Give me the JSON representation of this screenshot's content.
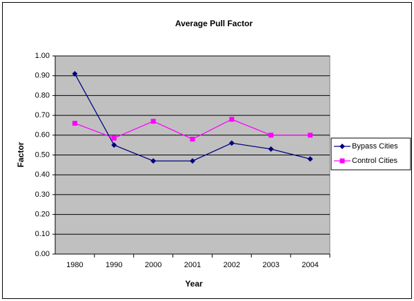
{
  "chart_data": {
    "type": "line",
    "title": "Average Pull Factor",
    "x_label": "Year",
    "y_label": "Factor",
    "categories": [
      "1980",
      "1990",
      "2000",
      "2001",
      "2002",
      "2003",
      "2004"
    ],
    "series": [
      {
        "name": "Bypass Cities",
        "color": "#000080",
        "marker": "diamond",
        "values": [
          0.91,
          0.55,
          0.47,
          0.47,
          0.56,
          0.53,
          0.48
        ]
      },
      {
        "name": "Control Cities",
        "color": "#ff00ff",
        "marker": "square",
        "values": [
          0.66,
          0.585,
          0.67,
          0.58,
          0.68,
          0.6,
          0.6
        ]
      }
    ],
    "ylim": [
      0,
      1
    ],
    "yticks": [
      {
        "value": 0,
        "label": "0.00"
      },
      {
        "value": 0.1,
        "label": "0.10"
      },
      {
        "value": 0.2,
        "label": "0.20"
      },
      {
        "value": 0.3,
        "label": "0.30"
      },
      {
        "value": 0.4,
        "label": "0.40"
      },
      {
        "value": 0.5,
        "label": "0.50"
      },
      {
        "value": 0.6,
        "label": "0.60"
      },
      {
        "value": 0.7,
        "label": "0.70"
      },
      {
        "value": 0.8,
        "label": "0.80"
      },
      {
        "value": 0.9,
        "label": "0.90"
      },
      {
        "value": 1,
        "label": "1.00"
      }
    ],
    "grid": true,
    "legend": "right",
    "plot_background": "#c0c0c0"
  }
}
